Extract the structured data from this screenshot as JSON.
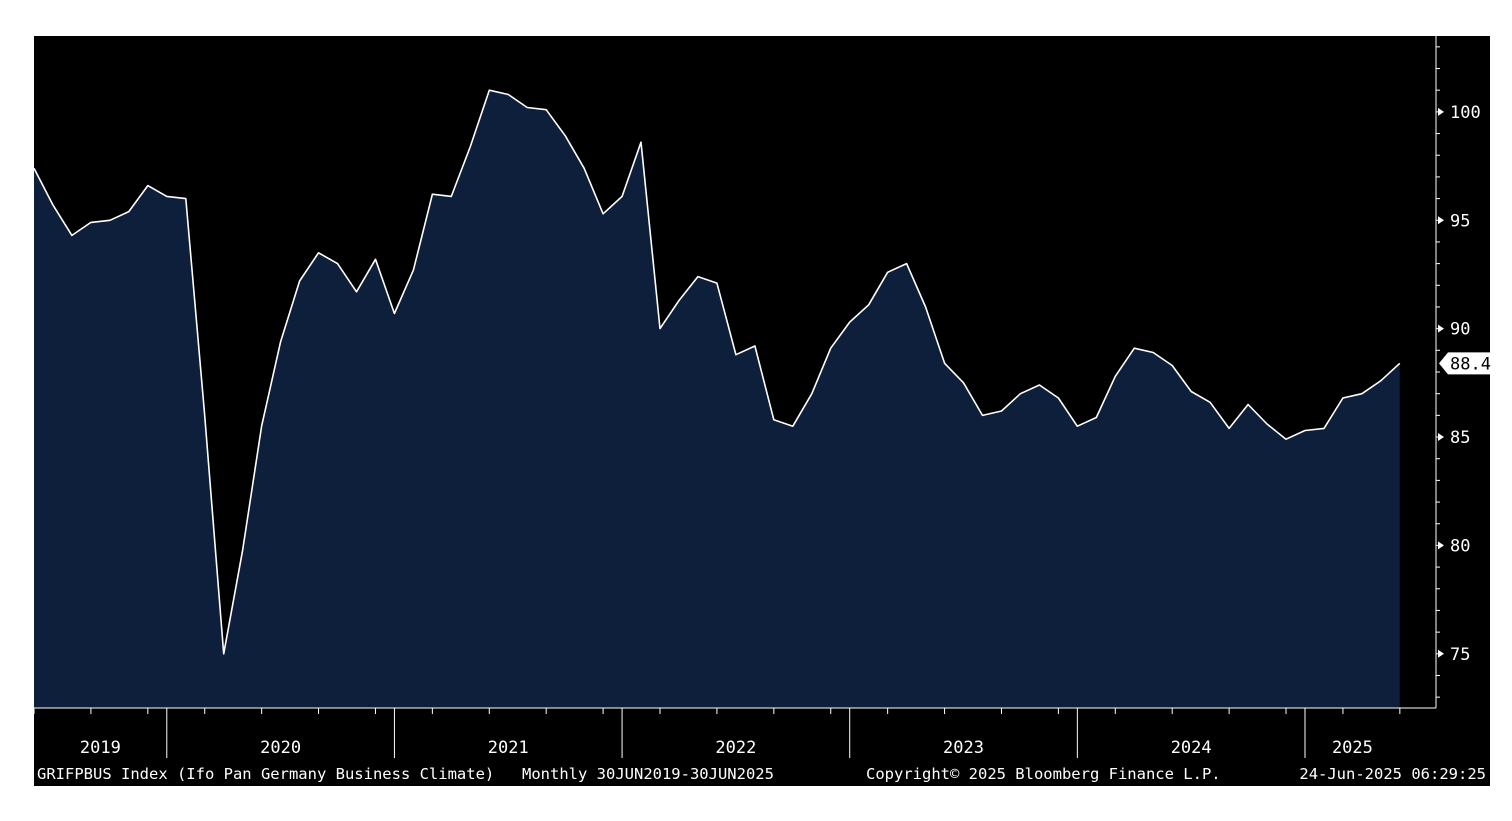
{
  "chart_data": {
    "type": "area",
    "series": [
      {
        "values": [
          {
            "x": "2019-06",
            "y": 97.4
          },
          {
            "x": "2019-07",
            "y": 95.7
          },
          {
            "x": "2019-08",
            "y": 94.3
          },
          {
            "x": "2019-09",
            "y": 94.9
          },
          {
            "x": "2019-10",
            "y": 95.0
          },
          {
            "x": "2019-11",
            "y": 95.4
          },
          {
            "x": "2019-12",
            "y": 96.6
          },
          {
            "x": "2020-01",
            "y": 96.1
          },
          {
            "x": "2020-02",
            "y": 96.0
          },
          {
            "x": "2020-03",
            "y": 86.0
          },
          {
            "x": "2020-04",
            "y": 75.0
          },
          {
            "x": "2020-05",
            "y": 79.8
          },
          {
            "x": "2020-06",
            "y": 85.5
          },
          {
            "x": "2020-07",
            "y": 89.4
          },
          {
            "x": "2020-08",
            "y": 92.2
          },
          {
            "x": "2020-09",
            "y": 93.5
          },
          {
            "x": "2020-10",
            "y": 93.0
          },
          {
            "x": "2020-11",
            "y": 91.7
          },
          {
            "x": "2020-12",
            "y": 93.2
          },
          {
            "x": "2021-01",
            "y": 90.7
          },
          {
            "x": "2021-02",
            "y": 92.7
          },
          {
            "x": "2021-03",
            "y": 96.2
          },
          {
            "x": "2021-04",
            "y": 96.1
          },
          {
            "x": "2021-05",
            "y": 98.4
          },
          {
            "x": "2021-06",
            "y": 101.0
          },
          {
            "x": "2021-07",
            "y": 100.8
          },
          {
            "x": "2021-08",
            "y": 100.2
          },
          {
            "x": "2021-09",
            "y": 100.1
          },
          {
            "x": "2021-10",
            "y": 98.9
          },
          {
            "x": "2021-11",
            "y": 97.4
          },
          {
            "x": "2021-12",
            "y": 95.3
          },
          {
            "x": "2022-01",
            "y": 96.1
          },
          {
            "x": "2022-02",
            "y": 98.6
          },
          {
            "x": "2022-03",
            "y": 90.0
          },
          {
            "x": "2022-04",
            "y": 91.3
          },
          {
            "x": "2022-05",
            "y": 92.4
          },
          {
            "x": "2022-06",
            "y": 92.1
          },
          {
            "x": "2022-07",
            "y": 88.8
          },
          {
            "x": "2022-08",
            "y": 89.2
          },
          {
            "x": "2022-09",
            "y": 85.8
          },
          {
            "x": "2022-10",
            "y": 85.5
          },
          {
            "x": "2022-11",
            "y": 87.0
          },
          {
            "x": "2022-12",
            "y": 89.1
          },
          {
            "x": "2023-01",
            "y": 90.3
          },
          {
            "x": "2023-02",
            "y": 91.1
          },
          {
            "x": "2023-03",
            "y": 92.6
          },
          {
            "x": "2023-04",
            "y": 93.0
          },
          {
            "x": "2023-05",
            "y": 91.0
          },
          {
            "x": "2023-06",
            "y": 88.4
          },
          {
            "x": "2023-07",
            "y": 87.5
          },
          {
            "x": "2023-08",
            "y": 86.0
          },
          {
            "x": "2023-09",
            "y": 86.2
          },
          {
            "x": "2023-10",
            "y": 87.0
          },
          {
            "x": "2023-11",
            "y": 87.4
          },
          {
            "x": "2023-12",
            "y": 86.8
          },
          {
            "x": "2024-01",
            "y": 85.5
          },
          {
            "x": "2024-02",
            "y": 85.9
          },
          {
            "x": "2024-03",
            "y": 87.8
          },
          {
            "x": "2024-04",
            "y": 89.1
          },
          {
            "x": "2024-05",
            "y": 88.9
          },
          {
            "x": "2024-06",
            "y": 88.3
          },
          {
            "x": "2024-07",
            "y": 87.1
          },
          {
            "x": "2024-08",
            "y": 86.6
          },
          {
            "x": "2024-09",
            "y": 85.4
          },
          {
            "x": "2024-10",
            "y": 86.5
          },
          {
            "x": "2024-11",
            "y": 85.6
          },
          {
            "x": "2024-12",
            "y": 84.9
          },
          {
            "x": "2025-01",
            "y": 85.3
          },
          {
            "x": "2025-02",
            "y": 85.4
          },
          {
            "x": "2025-03",
            "y": 86.8
          },
          {
            "x": "2025-04",
            "y": 87.0
          },
          {
            "x": "2025-05",
            "y": 87.6
          },
          {
            "x": "2025-06",
            "y": 88.4
          }
        ]
      }
    ],
    "ylim": [
      72.5,
      103.5
    ],
    "yticks": [
      75,
      80,
      85,
      90,
      95,
      100
    ],
    "year_labels": [
      "2019",
      "2020",
      "2021",
      "2022",
      "2023",
      "2024",
      "2025"
    ],
    "last_value_label": "88.4",
    "footer": {
      "ticker": "GRIFPBUS Index (Ifo Pan Germany Business Climate)",
      "range": "Monthly 30JUN2019-30JUN2025",
      "copyright": "Copyright© 2025 Bloomberg Finance L.P.",
      "timestamp": "24-Jun-2025 06:29:25"
    },
    "colors": {
      "background": "#000000",
      "area_fill": "#0e1f3c",
      "line": "#ffffff",
      "text": "#ffffff"
    },
    "grid": false,
    "legend": "none"
  }
}
